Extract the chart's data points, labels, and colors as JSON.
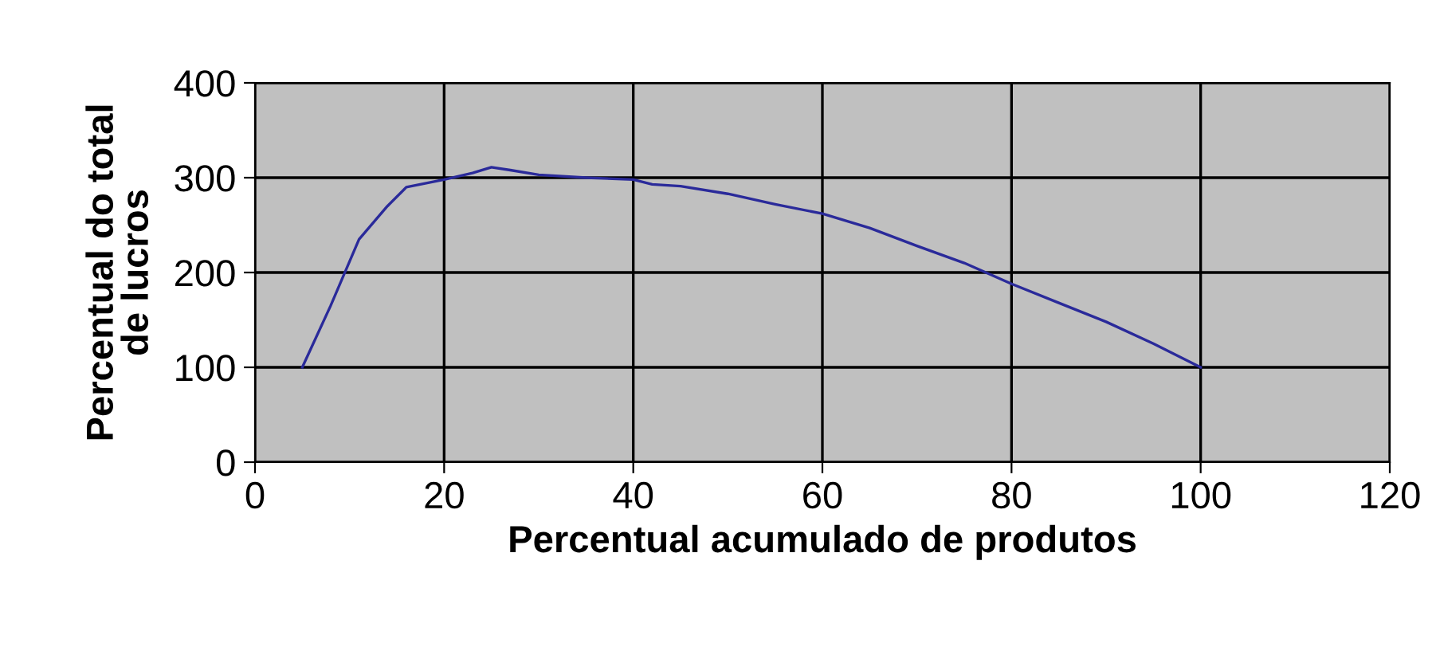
{
  "chart_data": {
    "type": "line",
    "xlabel": "Percentual acumulado de produtos",
    "ylabel": "Percentual do total\nde lucros",
    "series": [
      {
        "color": "#2a2a9a",
        "x": [
          5,
          8,
          11,
          14,
          16,
          20,
          23,
          25,
          27,
          30,
          35,
          40,
          42,
          45,
          50,
          55,
          60,
          65,
          70,
          75,
          80,
          85,
          90,
          95,
          100
        ],
        "values": [
          100,
          165,
          235,
          270,
          290,
          298,
          305,
          311,
          308,
          303,
          300,
          298,
          293,
          291,
          283,
          272,
          262,
          247,
          228,
          210,
          188,
          168,
          148,
          125,
          100
        ]
      }
    ],
    "xlim": [
      0,
      120
    ],
    "xticks": [
      0,
      20,
      40,
      60,
      80,
      100,
      120
    ],
    "ylim": [
      0,
      400
    ],
    "yticks": [
      0,
      100,
      200,
      300,
      400
    ],
    "grid": true,
    "marker": "none",
    "line_style": "solid"
  }
}
